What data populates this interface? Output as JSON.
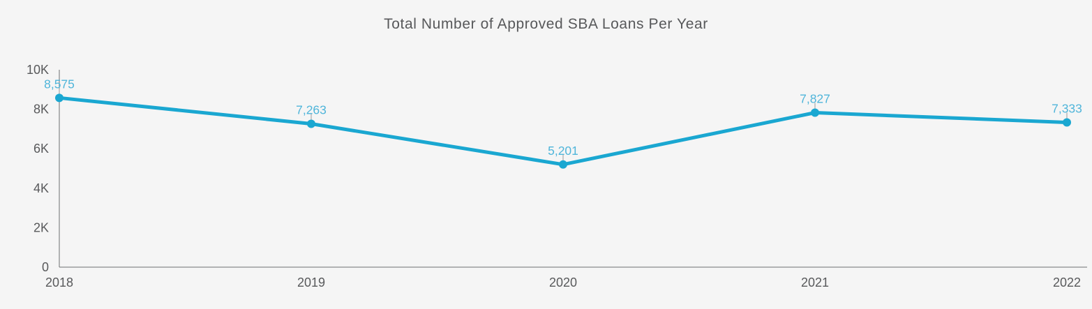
{
  "header": {
    "title": "Total Number of Approved SBA Loans Per Year"
  },
  "chart_data": {
    "type": "line",
    "title": "Total Number of Approved SBA Loans Per Year",
    "categories": [
      "2018",
      "2019",
      "2020",
      "2021",
      "2022"
    ],
    "values": [
      8575,
      7263,
      5201,
      7827,
      7333
    ],
    "point_labels": [
      "8,575",
      "7,263",
      "5,201",
      "7,827",
      "7,333"
    ],
    "xlabel": "",
    "ylabel": "",
    "ylim": [
      0,
      10000
    ],
    "yticks": [
      {
        "value": 0,
        "label": "0"
      },
      {
        "value": 2000,
        "label": "2K"
      },
      {
        "value": 4000,
        "label": "4K"
      },
      {
        "value": 6000,
        "label": "6K"
      },
      {
        "value": 8000,
        "label": "8K"
      },
      {
        "value": 10000,
        "label": "10K"
      }
    ],
    "grid": false,
    "legend": null,
    "colors": {
      "line": "#1aa7d1",
      "point": "#1aa7d1",
      "point_label": "#4fb5da",
      "axis": "#6d6e71",
      "tick_label": "#58595b",
      "title": "#57585a",
      "connector": "#9b9b9b",
      "background": "#f5f5f5"
    }
  }
}
